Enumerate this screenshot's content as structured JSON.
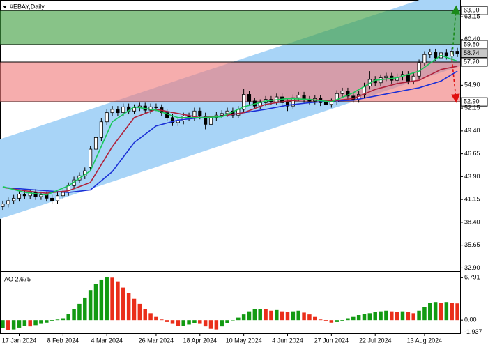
{
  "chart_data": [
    {
      "type": "candlestick",
      "title": "#EBAY,Daily",
      "categories": [
        null,
        null,
        null,
        "17 Jan 2024",
        null,
        null,
        null,
        null,
        null,
        null,
        null,
        "8 Feb 2024",
        null,
        null,
        null,
        null,
        null,
        null,
        null,
        "4 Mar 2024",
        null,
        null,
        null,
        null,
        null,
        null,
        null,
        null,
        "26 Mar 2024",
        null,
        null,
        null,
        null,
        null,
        null,
        null,
        "18 Apr 2024",
        null,
        null,
        null,
        null,
        null,
        null,
        null,
        "10 May 2024",
        null,
        null,
        null,
        null,
        null,
        null,
        null,
        "4 Jun 2024",
        null,
        null,
        null,
        null,
        null,
        null,
        null,
        "27 Jun 2024",
        null,
        null,
        null,
        null,
        null,
        null,
        null,
        "22 Jul 2024",
        null,
        null,
        null,
        null,
        null,
        null,
        null,
        null,
        "13 Aug 2024",
        null,
        null,
        null,
        null,
        null,
        null
      ],
      "open": [
        40.3,
        40.6,
        41.0,
        41.3,
        41.8,
        41.6,
        42.0,
        41.5,
        41.7,
        41.3,
        41.0,
        41.6,
        42.0,
        42.8,
        43.5,
        44.0,
        45.0,
        47.2,
        48.6,
        50.5,
        51.6,
        52.0,
        51.6,
        52.3,
        51.8,
        52.2,
        52.4,
        51.9,
        52.3,
        52.2,
        51.6,
        51.0,
        50.4,
        50.6,
        51.2,
        51.0,
        51.8,
        51.2,
        50.2,
        51.0,
        51.3,
        51.5,
        51.8,
        51.3,
        52.0,
        53.8,
        53.0,
        52.4,
        52.8,
        53.2,
        52.9,
        53.5,
        52.8,
        52.4,
        53.4,
        53.7,
        53.2,
        53.0,
        53.3,
        52.8,
        52.6,
        52.9,
        53.9,
        54.2,
        53.6,
        53.2,
        53.8,
        54.8,
        55.6,
        55.2,
        55.8,
        56.0,
        55.5,
        55.9,
        56.2,
        55.4,
        56.0,
        57.6,
        58.6,
        58.9,
        58.2,
        58.8,
        58.4,
        59.0
      ],
      "high": [
        41.0,
        41.4,
        41.7,
        42.2,
        42.2,
        42.4,
        42.4,
        42.1,
        42.1,
        41.7,
        42.0,
        42.4,
        43.2,
        43.9,
        44.4,
        45.0,
        47.6,
        49.0,
        50.9,
        52.0,
        52.4,
        52.4,
        52.7,
        52.7,
        52.6,
        52.8,
        52.8,
        52.7,
        52.7,
        52.6,
        52.0,
        51.4,
        51.0,
        51.6,
        51.6,
        52.2,
        52.2,
        51.6,
        51.4,
        51.7,
        51.9,
        52.2,
        52.2,
        52.4,
        54.5,
        54.2,
        53.4,
        53.2,
        53.6,
        53.6,
        53.9,
        53.9,
        53.2,
        53.8,
        54.1,
        54.1,
        53.6,
        53.7,
        53.7,
        53.2,
        53.3,
        54.3,
        54.6,
        54.6,
        54.0,
        54.2,
        55.2,
        56.6,
        56.0,
        56.2,
        56.4,
        56.4,
        56.3,
        56.6,
        56.6,
        56.4,
        58.0,
        59.0,
        59.3,
        59.3,
        59.2,
        59.2,
        59.4,
        59.4
      ],
      "low": [
        39.9,
        40.2,
        40.6,
        40.9,
        41.2,
        41.2,
        41.1,
        41.1,
        40.9,
        40.6,
        40.6,
        41.2,
        41.6,
        42.4,
        43.1,
        43.6,
        44.6,
        46.8,
        48.2,
        50.1,
        51.2,
        51.2,
        51.2,
        51.4,
        51.4,
        51.8,
        51.5,
        51.5,
        51.8,
        51.2,
        50.6,
        50.0,
        50.0,
        50.2,
        50.6,
        50.6,
        50.8,
        49.6,
        49.8,
        50.6,
        50.9,
        51.1,
        50.9,
        50.9,
        51.6,
        52.6,
        52.0,
        52.0,
        52.4,
        52.5,
        52.5,
        52.4,
        51.8,
        52.0,
        53.0,
        52.8,
        52.6,
        52.6,
        52.4,
        52.2,
        52.2,
        52.5,
        53.5,
        53.2,
        52.8,
        52.8,
        53.4,
        54.4,
        54.8,
        54.8,
        55.4,
        55.1,
        55.1,
        55.5,
        55.0,
        55.0,
        55.6,
        57.2,
        58.2,
        57.8,
        57.8,
        58.0,
        58.0,
        58.3
      ],
      "close": [
        40.6,
        41.0,
        41.3,
        41.8,
        41.6,
        42.0,
        41.5,
        41.7,
        41.3,
        41.0,
        41.6,
        42.0,
        42.8,
        43.5,
        44.0,
        44.6,
        47.2,
        48.6,
        50.5,
        51.6,
        52.0,
        51.6,
        52.3,
        51.8,
        52.2,
        52.4,
        51.9,
        52.3,
        52.2,
        51.6,
        51.0,
        50.4,
        50.6,
        51.2,
        51.0,
        51.8,
        51.2,
        50.2,
        51.0,
        51.3,
        51.5,
        51.8,
        51.3,
        52.0,
        53.8,
        53.0,
        52.4,
        52.8,
        53.2,
        52.9,
        53.5,
        52.8,
        52.4,
        53.4,
        53.7,
        53.2,
        53.0,
        53.3,
        52.8,
        52.6,
        52.9,
        53.9,
        54.2,
        53.6,
        53.2,
        53.8,
        54.8,
        55.6,
        55.2,
        55.8,
        56.0,
        55.5,
        55.9,
        56.2,
        55.4,
        56.0,
        57.6,
        58.6,
        58.9,
        58.2,
        58.8,
        58.4,
        59.0,
        58.74
      ],
      "up_color": "#ffffff",
      "down_color": "#000000",
      "ylim": [
        32.6,
        64.75
      ],
      "yticks": [
        63.15,
        {
          "value": 60.4,
          "label": "60.40"
        },
        {
          "value": 54.9,
          "label": "54.90"
        },
        52.15,
        {
          "value": 49.4,
          "label": "49.40"
        },
        46.65,
        {
          "value": 43.9,
          "label": "43.90"
        },
        41.15,
        {
          "value": 38.4,
          "label": "38.40"
        },
        35.65,
        {
          "value": 32.9,
          "label": "32.90"
        }
      ],
      "channel": {
        "lower": [
          38.8,
          57.2
        ],
        "upper": [
          48.4,
          66.8
        ],
        "color": "#a8d4f7"
      },
      "zones": [
        {
          "top": {
            "value": 63.9,
            "label": "63.90"
          },
          "bottom": {
            "value": 59.8,
            "label": "59.80"
          },
          "color": "#3f9e3f"
        },
        {
          "top": {
            "value": 57.7,
            "label": "57.70"
          },
          "bottom": {
            "value": 52.9,
            "label": "52.90"
          },
          "color": "#f07a7a"
        }
      ],
      "last_price": 58.74,
      "forecast": [
        {
          "from": 58.0,
          "to": 64.0,
          "color": "#1a8a1a"
        },
        {
          "from": 58.0,
          "to": 53.3,
          "color": "#e01010"
        }
      ],
      "lines": [
        {
          "color": "#1a2fd6",
          "x": [
            0,
            4,
            8,
            12,
            16,
            20,
            24,
            28,
            32,
            36,
            40,
            44,
            48,
            52,
            56,
            60,
            64,
            68,
            72,
            76,
            80,
            83
          ],
          "values": [
            42.6,
            42.4,
            42.2,
            42.0,
            42.3,
            44.5,
            48.0,
            50.0,
            50.7,
            51.0,
            51.2,
            51.6,
            52.0,
            52.5,
            52.8,
            53.0,
            53.1,
            53.6,
            54.1,
            54.6,
            55.4,
            56.6
          ]
        },
        {
          "color": "#b0203a",
          "x": [
            0,
            4,
            8,
            12,
            16,
            20,
            24,
            28,
            32,
            36,
            40,
            44,
            48,
            52,
            56,
            60,
            64,
            68,
            72,
            76,
            80,
            83
          ],
          "values": [
            42.6,
            42.2,
            41.9,
            42.2,
            43.2,
            47.5,
            51.0,
            52.0,
            51.5,
            51.0,
            51.2,
            51.6,
            52.6,
            53.0,
            53.2,
            53.0,
            53.3,
            54.4,
            55.1,
            55.5,
            56.8,
            57.2
          ]
        },
        {
          "color": "#19c85a",
          "x": [
            0,
            4,
            8,
            12,
            16,
            20,
            24,
            28,
            32,
            36,
            40,
            44,
            48,
            52,
            56,
            60,
            64,
            68,
            72,
            76,
            80,
            83
          ],
          "values": [
            42.7,
            42.0,
            41.7,
            42.8,
            44.6,
            50.5,
            52.3,
            51.9,
            51.0,
            51.0,
            51.1,
            52.3,
            53.0,
            53.3,
            53.2,
            52.9,
            54.0,
            55.5,
            55.8,
            56.6,
            58.5,
            57.8
          ]
        }
      ]
    },
    {
      "type": "bar",
      "title": "AO 2.675",
      "values": [
        -1.3,
        -1.6,
        -1.5,
        -1.2,
        -0.9,
        -1.0,
        -0.8,
        -0.6,
        -0.4,
        -0.2,
        0.1,
        0.3,
        1.0,
        1.8,
        2.6,
        3.6,
        4.8,
        5.8,
        6.5,
        6.9,
        6.8,
        6.2,
        5.2,
        4.3,
        3.4,
        2.6,
        1.8,
        1.1,
        0.5,
        0.1,
        -0.3,
        -0.6,
        -0.9,
        -0.9,
        -0.7,
        -0.5,
        -0.6,
        -1.0,
        -1.4,
        -1.5,
        -1.0,
        -0.5,
        0.0,
        0.4,
        0.9,
        1.4,
        1.7,
        1.8,
        1.7,
        1.5,
        1.6,
        1.4,
        1.3,
        1.4,
        1.5,
        1.2,
        0.9,
        0.5,
        0.1,
        -0.2,
        -0.4,
        -0.3,
        -0.1,
        0.3,
        0.5,
        0.8,
        1.0,
        1.1,
        1.3,
        1.4,
        1.5,
        1.4,
        1.3,
        1.4,
        1.3,
        1.1,
        1.5,
        2.1,
        2.7,
        2.9,
        2.8,
        2.9,
        2.7,
        2.675
      ],
      "up_color": "#129a12",
      "down_color": "#ea2e1a",
      "ylim": [
        -2.1,
        7.5
      ],
      "yticks": [
        6.791,
        {
          "value": 0,
          "label": "0.00"
        },
        -1.937
      ]
    }
  ]
}
